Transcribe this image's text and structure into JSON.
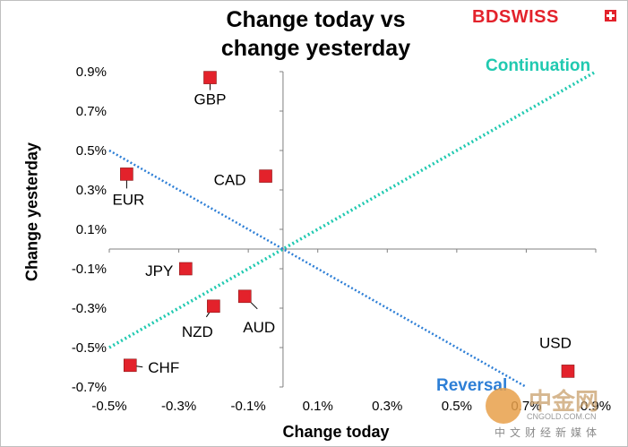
{
  "chart_data": {
    "type": "scatter",
    "title": "Change today vs change yesterday",
    "title_lines": [
      "Change today vs",
      "change yesterday"
    ],
    "xlabel": "Change today",
    "ylabel": "Change yesterday",
    "xlim": [
      -0.5,
      0.9
    ],
    "ylim": [
      -0.7,
      0.9
    ],
    "x_ticks": [
      -0.5,
      -0.3,
      -0.1,
      0.1,
      0.3,
      0.5,
      0.7,
      0.9
    ],
    "y_ticks": [
      -0.7,
      -0.5,
      -0.3,
      -0.1,
      0.1,
      0.3,
      0.5,
      0.7,
      0.9
    ],
    "x_tick_labels": [
      "-0.5%",
      "-0.3%",
      "-0.1%",
      "0.1%",
      "0.3%",
      "0.5%",
      "0.7%",
      "0.9%"
    ],
    "y_tick_labels": [
      "-0.7%",
      "-0.5%",
      "-0.3%",
      "-0.1%",
      "0.1%",
      "0.3%",
      "0.5%",
      "0.7%",
      "0.9%"
    ],
    "marker_color": "#e3222b",
    "points": [
      {
        "label": "GBP",
        "x": -0.21,
        "y": 0.87
      },
      {
        "label": "CAD",
        "x": -0.05,
        "y": 0.37
      },
      {
        "label": "EUR",
        "x": -0.45,
        "y": 0.38
      },
      {
        "label": "JPY",
        "x": -0.28,
        "y": -0.1
      },
      {
        "label": "NZD",
        "x": -0.2,
        "y": -0.29
      },
      {
        "label": "AUD",
        "x": -0.11,
        "y": -0.24
      },
      {
        "label": "CHF",
        "x": -0.44,
        "y": -0.59
      },
      {
        "label": "USD",
        "x": 0.82,
        "y": -0.62
      }
    ],
    "trendlines": [
      {
        "name": "Continuation",
        "color": "#20c9b0",
        "x": [
          -0.5,
          0.9
        ],
        "y": [
          -0.5,
          0.9
        ]
      },
      {
        "name": "Reversal",
        "color": "#2e7fd6",
        "x": [
          -0.5,
          0.7
        ],
        "y": [
          0.5,
          -0.7
        ]
      }
    ]
  },
  "brand": "BDSWISS",
  "watermark": {
    "big": "中金网",
    "small": "CNGOLD.COM.CN",
    "cn": "中文财经新媒体"
  }
}
